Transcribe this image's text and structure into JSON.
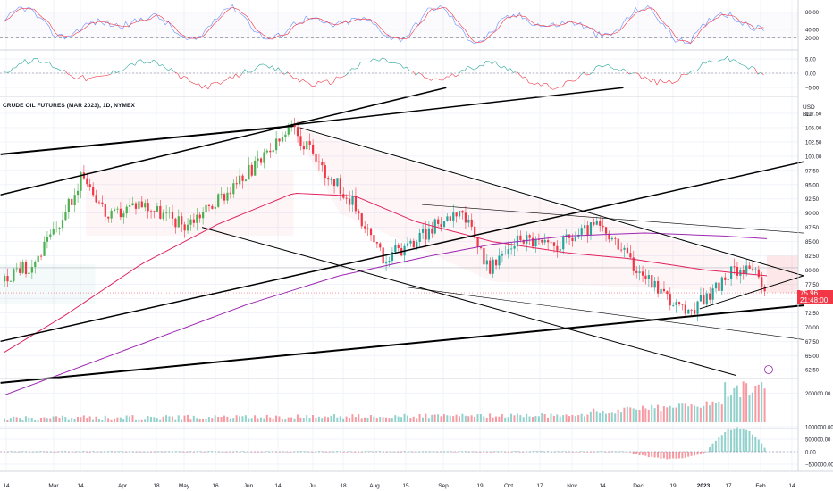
{
  "chart_data": [
    {
      "type": "line",
      "panel": "oscillator",
      "series": [],
      "y_ticks": [
        "80.00",
        "40.00",
        "20.00"
      ],
      "guides": [
        80,
        20
      ],
      "ylim": [
        0,
        100
      ]
    },
    {
      "type": "line",
      "panel": "momentum",
      "series": [],
      "y_ticks": [
        "5.00",
        "0.00",
        "−5.00"
      ],
      "ylim": [
        -8,
        8
      ]
    },
    {
      "type": "candlestick",
      "panel": "price",
      "title": "CRUDE OIL FUTURES (MAR 2023), 1D, NYMEX",
      "currency": "USD",
      "unit": "BLL",
      "y_ticks": [
        "107.50",
        "105.00",
        "102.50",
        "100.00",
        "97.50",
        "95.00",
        "92.50",
        "90.00",
        "87.50",
        "85.00",
        "82.50",
        "80.00",
        "77.50",
        "75.00",
        "72.50",
        "70.00",
        "67.50",
        "65.00",
        "62.50"
      ],
      "ylim": [
        60.5,
        110
      ],
      "last_price": "75.96",
      "countdown": "21:48:00",
      "series": [
        {
          "name": "",
          "kind": "moving-average",
          "color": "#e0245e",
          "anchors": [
            [
              0,
              65.5
            ],
            [
              20,
              72
            ],
            [
              45,
              81
            ],
            [
              70,
              88
            ],
            [
              95,
              93.5
            ],
            [
              115,
              93
            ],
            [
              135,
              88.5
            ],
            [
              160,
              85
            ],
            [
              185,
              83
            ],
            [
              205,
              82
            ],
            [
              230,
              80
            ],
            [
              250,
              79
            ]
          ]
        },
        {
          "name": "",
          "kind": "moving-average",
          "color": "#9c27b0",
          "anchors": [
            [
              0,
              58
            ],
            [
              40,
              66
            ],
            [
              80,
              74
            ],
            [
              110,
              79
            ],
            [
              140,
              82.5
            ],
            [
              160,
              84.5
            ],
            [
              185,
              86
            ],
            [
              210,
              86.5
            ],
            [
              235,
              86
            ],
            [
              250,
              85.5
            ]
          ]
        }
      ],
      "candles_generated": true,
      "x_ticks": [
        "14",
        "Mar",
        "14",
        "Apr",
        "18",
        "May",
        "16",
        "Jun",
        "14",
        "Jul",
        "18",
        "Aug",
        "15",
        "Sep",
        "19",
        "Oct",
        "17",
        "Nov",
        "14",
        "Dec",
        "19",
        "2023",
        "17",
        "Feb",
        "14"
      ]
    },
    {
      "type": "bar",
      "panel": "volume",
      "y_ticks": [
        "200000.00"
      ],
      "ylim": [
        0,
        300000
      ]
    },
    {
      "type": "bar",
      "panel": "flow",
      "y_ticks": [
        "1000000.00",
        "500000.00",
        "0.00",
        "−500000.00"
      ],
      "ylim": [
        -500000,
        1100000
      ]
    }
  ]
}
